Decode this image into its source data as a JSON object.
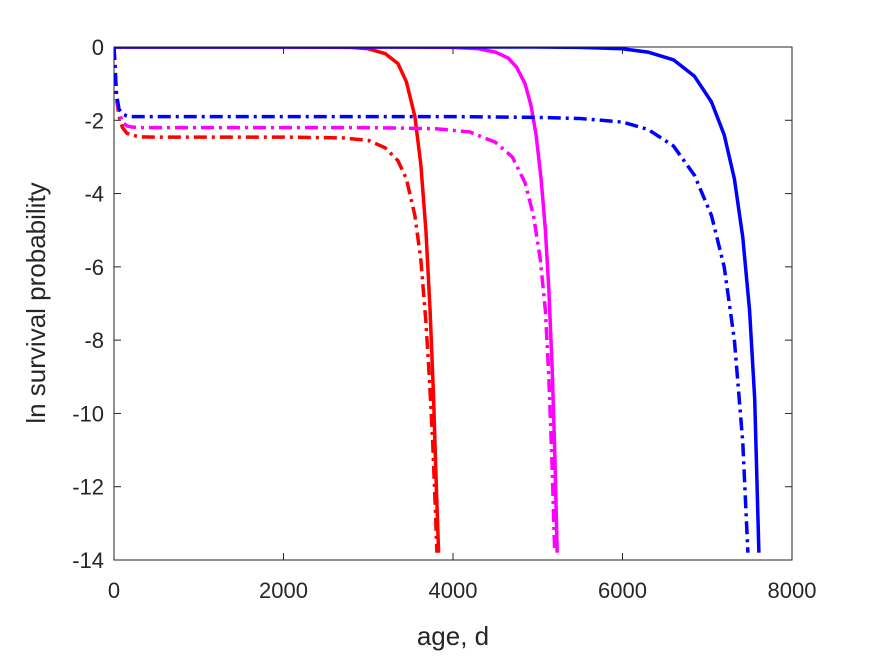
{
  "chart_data": {
    "type": "line",
    "title": "",
    "xlabel": "age, d",
    "ylabel": "ln survival probability",
    "xlim": [
      0,
      8000
    ],
    "ylim": [
      -14,
      0
    ],
    "xticks": [
      0,
      2000,
      4000,
      6000,
      8000
    ],
    "yticks": [
      -14,
      -12,
      -10,
      -8,
      -6,
      -4,
      -2,
      0
    ],
    "xtick_labels": [
      "0",
      "2000",
      "4000",
      "6000",
      "8000"
    ],
    "ytick_labels": [
      "-14",
      "-12",
      "-10",
      "-8",
      "-6",
      "-4",
      "-2",
      "0"
    ],
    "grid": false,
    "legend": "none",
    "series": [
      {
        "color": "#ff0000",
        "style": "solid",
        "x": [
          0,
          1000,
          2000,
          2800,
          3000,
          3200,
          3350,
          3450,
          3550,
          3620,
          3680,
          3730,
          3770,
          3800,
          3830
        ],
        "y": [
          0,
          0,
          0,
          -0.01,
          -0.05,
          -0.18,
          -0.45,
          -0.95,
          -1.9,
          -3.2,
          -5.0,
          -7.2,
          -9.5,
          -11.8,
          -13.8
        ]
      },
      {
        "color": "#ff0000",
        "style": "dashdot",
        "x": [
          0,
          30,
          60,
          100,
          150,
          200,
          300,
          500,
          1000,
          2000,
          2700,
          3000,
          3200,
          3350,
          3450,
          3550,
          3620,
          3680,
          3720,
          3760,
          3790,
          3810
        ],
        "y": [
          0,
          -1.4,
          -1.9,
          -2.2,
          -2.35,
          -2.4,
          -2.45,
          -2.46,
          -2.46,
          -2.46,
          -2.48,
          -2.55,
          -2.75,
          -3.1,
          -3.6,
          -4.6,
          -5.8,
          -7.5,
          -9.0,
          -10.8,
          -12.5,
          -13.8
        ]
      },
      {
        "color": "#ff00ff",
        "style": "solid",
        "x": [
          0,
          1000,
          2000,
          3000,
          4000,
          4300,
          4500,
          4650,
          4750,
          4850,
          4920,
          4980,
          5040,
          5090,
          5130,
          5170,
          5200,
          5230
        ],
        "y": [
          0,
          0,
          0,
          0,
          -0.01,
          -0.05,
          -0.14,
          -0.3,
          -0.55,
          -1.0,
          -1.6,
          -2.4,
          -3.6,
          -5.0,
          -6.6,
          -8.8,
          -11.0,
          -13.8
        ]
      },
      {
        "color": "#ff00ff",
        "style": "dashdot",
        "x": [
          0,
          30,
          60,
          100,
          150,
          200,
          300,
          500,
          1000,
          2000,
          3000,
          3800,
          4200,
          4500,
          4700,
          4850,
          4950,
          5030,
          5090,
          5130,
          5170,
          5200
        ],
        "y": [
          0,
          -1.3,
          -1.8,
          -2.05,
          -2.15,
          -2.18,
          -2.2,
          -2.2,
          -2.2,
          -2.2,
          -2.2,
          -2.23,
          -2.32,
          -2.6,
          -3.0,
          -3.7,
          -4.6,
          -5.8,
          -7.2,
          -9.0,
          -11.5,
          -13.8
        ]
      },
      {
        "color": "#0000ff",
        "style": "solid",
        "x": [
          0,
          2000,
          4000,
          5000,
          5500,
          6000,
          6300,
          6600,
          6850,
          7050,
          7200,
          7320,
          7420,
          7500,
          7560,
          7610
        ],
        "y": [
          0,
          0,
          0,
          0,
          -0.01,
          -0.05,
          -0.14,
          -0.35,
          -0.8,
          -1.5,
          -2.4,
          -3.6,
          -5.2,
          -7.2,
          -9.6,
          -13.8
        ]
      },
      {
        "color": "#0000ff",
        "style": "dashdot",
        "x": [
          0,
          30,
          60,
          100,
          150,
          200,
          300,
          500,
          1000,
          2000,
          3000,
          4000,
          5000,
          5500,
          6000,
          6300,
          6600,
          6850,
          7050,
          7200,
          7320,
          7420,
          7480
        ],
        "y": [
          0,
          -1.3,
          -1.7,
          -1.82,
          -1.88,
          -1.9,
          -1.9,
          -1.9,
          -1.9,
          -1.9,
          -1.9,
          -1.9,
          -1.92,
          -1.95,
          -2.05,
          -2.25,
          -2.7,
          -3.5,
          -4.6,
          -6.0,
          -8.0,
          -10.8,
          -13.8
        ]
      }
    ]
  }
}
